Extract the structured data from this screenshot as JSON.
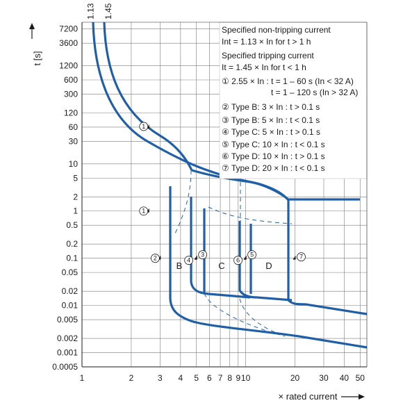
{
  "chart_data": {
    "type": "line",
    "title": "",
    "xlabel": "× rated current",
    "ylabel": "t [s]",
    "x_scale": "log",
    "y_scale": "log",
    "xlim": [
      1,
      55
    ],
    "ylim": [
      0.0005,
      10000
    ],
    "x_ticks": [
      1,
      2,
      3,
      4,
      5,
      6,
      7,
      8,
      9,
      10,
      20,
      30,
      40,
      50
    ],
    "x_tick_labels": [
      "1",
      "2",
      "3",
      "4",
      "5",
      "6",
      "7",
      "8",
      "9",
      "10",
      "20",
      "30",
      "40",
      "50"
    ],
    "y_ticks": [
      0.0005,
      0.001,
      0.002,
      0.005,
      0.01,
      0.02,
      0.05,
      0.1,
      0.2,
      0.5,
      1,
      2,
      5,
      10,
      30,
      60,
      120,
      300,
      600,
      1200,
      3600,
      7200
    ],
    "y_tick_labels": [
      "0.0005",
      "0.001",
      "0.002",
      "0.005",
      "0.01",
      "0.02",
      "0.05",
      "0.1",
      "0.2",
      "0.5",
      "1",
      "2",
      "5",
      "10",
      "30",
      "60",
      "120",
      "300",
      "600",
      "1200",
      "3600",
      "7200"
    ],
    "top_markers": [
      "1.13",
      "1.45"
    ],
    "grid": true,
    "legend_placement": "top-right",
    "legend_lines": [
      "Specified non-tripping current",
      "Int = 1.13 × In for t > 1 h",
      "Specified tripping current",
      "It = 1.45 × In for t < 1 h",
      "① 2.55 × In : t = 1 – 60 s (In < 32 A)",
      "t = 1 – 120 s (In > 32 A)",
      "② Type B: 3 × In : t > 0.1 s",
      "③ Type B: 5 × In : t < 0.1 s",
      "④ Type C: 5 × In : t > 0.1 s",
      "⑤ Type C: 10 × In : t < 0.1 s",
      "⑥ Type D: 10 × In : t > 0.1 s",
      "⑦ Type D: 20 × In : t < 0.1 s"
    ],
    "zone_labels": [
      "B",
      "C",
      "D"
    ],
    "markers": [
      {
        "label": "1",
        "x": 2.55,
        "y": 60
      },
      {
        "label": "1",
        "x": 2.55,
        "y": 1
      },
      {
        "label": "2",
        "x": 3,
        "y": 0.1
      },
      {
        "label": "3",
        "x": 5,
        "y": 0.1
      },
      {
        "label": "4",
        "x": 5,
        "y": 0.1
      },
      {
        "label": "5",
        "x": 10,
        "y": 0.1
      },
      {
        "label": "6",
        "x": 10,
        "y": 0.1
      },
      {
        "label": "7",
        "x": 20,
        "y": 0.1
      }
    ],
    "series": [
      {
        "points": [
          [
            1.13,
            7200
          ],
          [
            1.17,
            3600
          ],
          [
            1.3,
            1200
          ],
          [
            1.6,
            300
          ],
          [
            2.0,
            120
          ],
          [
            2.55,
            60
          ],
          [
            3.2,
            25
          ],
          [
            4.2,
            12
          ],
          [
            5.0,
            8
          ],
          [
            6.5,
            5.2
          ],
          [
            8.5,
            3.6
          ],
          [
            12,
            2.6
          ],
          [
            18,
            2.0
          ],
          [
            20,
            1.9
          ],
          [
            55,
            1.9
          ]
        ]
      },
      {
        "points": [
          [
            1.45,
            7200
          ],
          [
            1.5,
            3600
          ],
          [
            1.7,
            1200
          ],
          [
            2.1,
            300
          ],
          [
            2.7,
            120
          ],
          [
            3.2,
            60
          ],
          [
            4.0,
            30
          ],
          [
            5.0,
            12
          ],
          [
            6.3,
            7
          ],
          [
            8.5,
            4.8
          ],
          [
            12,
            3.2
          ],
          [
            18,
            2.4
          ],
          [
            30,
            1.9
          ],
          [
            55,
            1.6
          ]
        ]
      },
      {
        "points": [
          [
            3,
            3.9
          ],
          [
            3,
            0.015
          ],
          [
            3.3,
            0.0085
          ],
          [
            4.2,
            0.0055
          ],
          [
            6,
            0.0042
          ],
          [
            10,
            0.003
          ],
          [
            20,
            0.002
          ],
          [
            55,
            0.0012
          ]
        ]
      },
      {
        "points": [
          [
            5,
            3.5
          ],
          [
            5,
            0.025
          ],
          [
            5.4,
            0.0175
          ],
          [
            6.5,
            0.0145
          ],
          [
            55,
            0.0075
          ]
        ]
      }
    ]
  }
}
